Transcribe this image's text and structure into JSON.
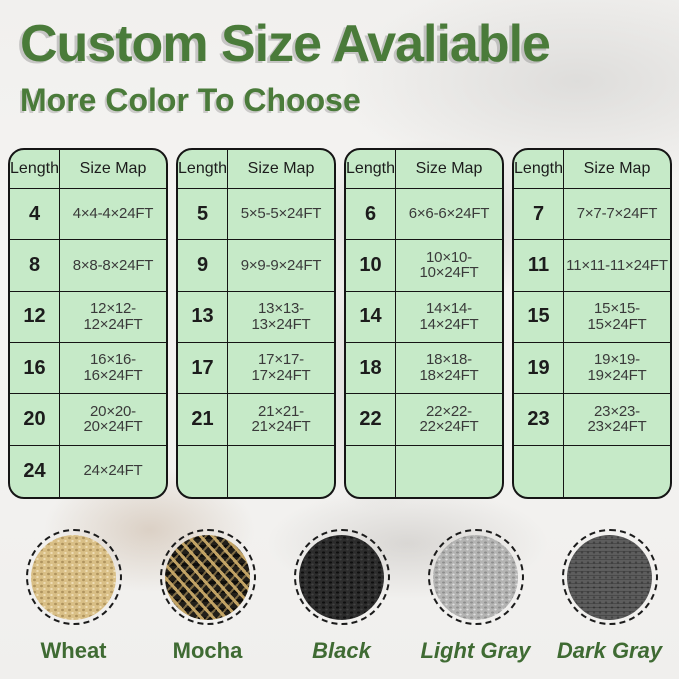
{
  "header": {
    "title": "Custom Size Avaliable",
    "subtitle": "More Color To Choose"
  },
  "colors": {
    "accent_green": "#4a7b3a",
    "label_green": "#3f6b33",
    "table_bg": "#c6eac8",
    "table_border": "#151515",
    "wheat": "#d9bf86",
    "mocha": "#221f19",
    "black": "#2c2c2c",
    "light_gray": "#b4b4b3",
    "dark_gray": "#5d5d5d"
  },
  "tables": [
    {
      "headers": {
        "length": "Length",
        "size_map": "Size Map"
      },
      "rows": [
        {
          "len": "4",
          "size": "4×4-4×24FT"
        },
        {
          "len": "8",
          "size": "8×8-8×24FT"
        },
        {
          "len": "12",
          "size": "12×12-12×24FT"
        },
        {
          "len": "16",
          "size": "16×16-16×24FT"
        },
        {
          "len": "20",
          "size": "20×20-20×24FT"
        },
        {
          "len": "24",
          "size": "24×24FT"
        }
      ]
    },
    {
      "headers": {
        "length": "Length",
        "size_map": "Size Map"
      },
      "rows": [
        {
          "len": "5",
          "size": "5×5-5×24FT"
        },
        {
          "len": "9",
          "size": "9×9-9×24FT"
        },
        {
          "len": "13",
          "size": "13×13-13×24FT"
        },
        {
          "len": "17",
          "size": "17×17-17×24FT"
        },
        {
          "len": "21",
          "size": "21×21-21×24FT"
        },
        {
          "len": "",
          "size": ""
        }
      ]
    },
    {
      "headers": {
        "length": "Length",
        "size_map": "Size Map"
      },
      "rows": [
        {
          "len": "6",
          "size": "6×6-6×24FT"
        },
        {
          "len": "10",
          "size": "10×10-10×24FT"
        },
        {
          "len": "14",
          "size": "14×14-14×24FT"
        },
        {
          "len": "18",
          "size": "18×18-18×24FT"
        },
        {
          "len": "22",
          "size": "22×22-22×24FT"
        },
        {
          "len": "",
          "size": ""
        }
      ]
    },
    {
      "headers": {
        "length": "Length",
        "size_map": "Size Map"
      },
      "rows": [
        {
          "len": "7",
          "size": "7×7-7×24FT"
        },
        {
          "len": "11",
          "size": "11×11-11×24FT"
        },
        {
          "len": "15",
          "size": "15×15-15×24FT"
        },
        {
          "len": "19",
          "size": "19×19-19×24FT"
        },
        {
          "len": "23",
          "size": "23×23-23×24FT"
        },
        {
          "len": "",
          "size": ""
        }
      ]
    }
  ],
  "swatches": [
    {
      "label": "Wheat"
    },
    {
      "label": "Mocha"
    },
    {
      "label": "Black"
    },
    {
      "label": "Light Gray"
    },
    {
      "label": "Dark Gray"
    }
  ]
}
